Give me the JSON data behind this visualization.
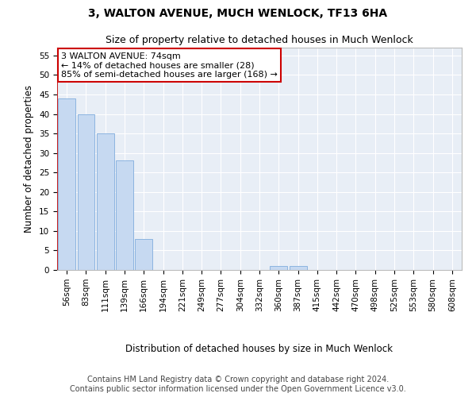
{
  "title": "3, WALTON AVENUE, MUCH WENLOCK, TF13 6HA",
  "subtitle": "Size of property relative to detached houses in Much Wenlock",
  "xlabel": "Distribution of detached houses by size in Much Wenlock",
  "ylabel": "Number of detached properties",
  "categories": [
    "56sqm",
    "83sqm",
    "111sqm",
    "139sqm",
    "166sqm",
    "194sqm",
    "221sqm",
    "249sqm",
    "277sqm",
    "304sqm",
    "332sqm",
    "360sqm",
    "387sqm",
    "415sqm",
    "442sqm",
    "470sqm",
    "498sqm",
    "525sqm",
    "553sqm",
    "580sqm",
    "608sqm"
  ],
  "values": [
    44,
    40,
    35,
    28,
    8,
    0,
    0,
    0,
    0,
    0,
    0,
    1,
    1,
    0,
    0,
    0,
    0,
    0,
    0,
    0,
    0
  ],
  "bar_color": "#c6d9f1",
  "bar_edge_color": "#8cb4e0",
  "ylim": [
    0,
    57
  ],
  "yticks": [
    0,
    5,
    10,
    15,
    20,
    25,
    30,
    35,
    40,
    45,
    50,
    55
  ],
  "annotation_box_text": "3 WALTON AVENUE: 74sqm\n← 14% of detached houses are smaller (28)\n85% of semi-detached houses are larger (168) →",
  "annotation_box_color": "#ffffff",
  "annotation_box_edge_color": "#cc0000",
  "property_line_color": "#cc0000",
  "footer_line1": "Contains HM Land Registry data © Crown copyright and database right 2024.",
  "footer_line2": "Contains public sector information licensed under the Open Government Licence v3.0.",
  "background_color": "#e8eef6",
  "grid_color": "#ffffff",
  "title_fontsize": 10,
  "subtitle_fontsize": 9,
  "axis_label_fontsize": 8.5,
  "tick_fontsize": 7.5,
  "annotation_fontsize": 8,
  "footer_fontsize": 7
}
